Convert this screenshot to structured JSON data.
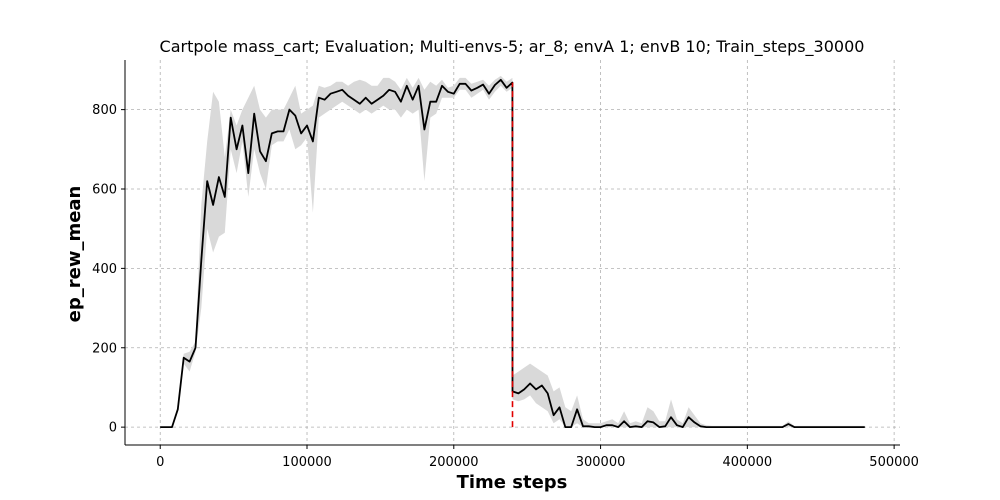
{
  "chart_data": {
    "type": "line",
    "title": "Cartpole mass_cart; Evaluation; Multi-envs-5; ar_8; envA 1; envB 10; Train_steps_30000",
    "xlabel": "Time steps",
    "ylabel": "ep_rew_mean",
    "xlim": [
      -24000,
      504000
    ],
    "ylim": [
      -45,
      925
    ],
    "xticks": [
      0,
      100000,
      200000,
      300000,
      400000,
      500000
    ],
    "xtick_labels": [
      "0",
      "100000",
      "200000",
      "300000",
      "400000",
      "500000"
    ],
    "yticks": [
      0,
      200,
      400,
      600,
      800
    ],
    "ytick_labels": [
      "0",
      "200",
      "400",
      "600",
      "800"
    ],
    "grid": true,
    "legend": "none",
    "vline": {
      "x": 240000,
      "color": "#e00000",
      "style": "dashed"
    },
    "colors": {
      "line": "#000000",
      "band": "#d9d9d9",
      "grid": "#b0b0b0"
    },
    "series": [
      {
        "x": [
          0,
          4000,
          8000,
          12000,
          16000,
          20000,
          24000,
          28000,
          32000,
          36000,
          40000,
          44000,
          48000,
          52000,
          56000,
          60000,
          64000,
          68000,
          72000,
          76000,
          80000,
          84000,
          88000,
          92000,
          96000,
          100000,
          104000,
          108000,
          112000,
          116000,
          120000,
          124000,
          128000,
          132000,
          136000,
          140000,
          144000,
          148000,
          152000,
          156000,
          160000,
          164000,
          168000,
          172000,
          176000,
          180000,
          184000,
          188000,
          192000,
          196000,
          200000,
          204000,
          208000,
          212000,
          216000,
          220000,
          224000,
          228000,
          232000,
          236000,
          239900,
          240000,
          244000,
          248000,
          252000,
          256000,
          260000,
          264000,
          268000,
          272000,
          276000,
          280000,
          284000,
          288000,
          292000,
          296000,
          300000,
          304000,
          308000,
          312000,
          316000,
          320000,
          324000,
          328000,
          332000,
          336000,
          340000,
          344000,
          348000,
          352000,
          356000,
          360000,
          364000,
          368000,
          372000,
          376000,
          380000,
          400000,
          420000,
          424000,
          428000,
          432000,
          436000,
          460000,
          480000
        ],
        "y": [
          0,
          0,
          0,
          45,
          175,
          165,
          200,
          420,
          620,
          560,
          630,
          580,
          780,
          700,
          760,
          640,
          790,
          695,
          670,
          740,
          745,
          745,
          800,
          785,
          740,
          760,
          720,
          830,
          825,
          840,
          845,
          850,
          835,
          825,
          815,
          830,
          815,
          825,
          835,
          850,
          845,
          820,
          860,
          825,
          860,
          750,
          820,
          820,
          860,
          845,
          840,
          865,
          865,
          848,
          855,
          863,
          840,
          862,
          875,
          855,
          868,
          90,
          85,
          95,
          110,
          95,
          105,
          85,
          30,
          50,
          0,
          0,
          45,
          2,
          2,
          0,
          0,
          5,
          5,
          0,
          15,
          0,
          2,
          0,
          15,
          12,
          0,
          2,
          25,
          5,
          0,
          25,
          12,
          2,
          0,
          0,
          0,
          0,
          0,
          0,
          8,
          0,
          0,
          0,
          0
        ],
        "y_lower": [
          0,
          0,
          0,
          40,
          160,
          140,
          190,
          300,
          500,
          440,
          480,
          490,
          700,
          640,
          720,
          580,
          700,
          640,
          600,
          710,
          720,
          720,
          750,
          700,
          710,
          730,
          540,
          780,
          790,
          800,
          810,
          820,
          810,
          800,
          790,
          800,
          790,
          800,
          810,
          800,
          800,
          780,
          800,
          790,
          800,
          620,
          780,
          790,
          830,
          830,
          830,
          850,
          850,
          830,
          840,
          850,
          825,
          845,
          860,
          845,
          855,
          70,
          65,
          70,
          80,
          60,
          50,
          40,
          10,
          20,
          0,
          0,
          10,
          0,
          0,
          0,
          0,
          0,
          0,
          0,
          0,
          0,
          0,
          0,
          0,
          0,
          0,
          0,
          0,
          0,
          0,
          0,
          0,
          0,
          0,
          0,
          0,
          0,
          0,
          0,
          0,
          0,
          0,
          0,
          0
        ],
        "y_upper": [
          0,
          0,
          0,
          50,
          185,
          190,
          215,
          560,
          720,
          845,
          820,
          680,
          800,
          760,
          800,
          830,
          860,
          800,
          780,
          800,
          800,
          800,
          830,
          860,
          790,
          800,
          810,
          860,
          855,
          860,
          870,
          870,
          860,
          870,
          875,
          870,
          860,
          860,
          880,
          880,
          870,
          850,
          880,
          855,
          880,
          850,
          870,
          860,
          875,
          855,
          860,
          880,
          880,
          865,
          870,
          875,
          860,
          875,
          885,
          870,
          880,
          130,
          140,
          150,
          160,
          150,
          140,
          130,
          90,
          100,
          50,
          40,
          80,
          20,
          10,
          10,
          10,
          15,
          20,
          10,
          40,
          10,
          15,
          10,
          50,
          40,
          15,
          15,
          70,
          20,
          10,
          50,
          30,
          10,
          5,
          3,
          3,
          3,
          3,
          3,
          15,
          3,
          3,
          3,
          3
        ]
      }
    ]
  }
}
